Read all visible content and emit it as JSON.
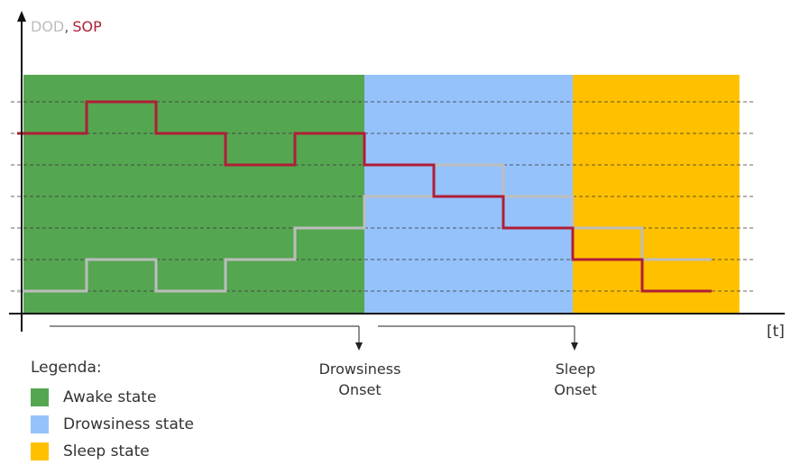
{
  "chart_data": {
    "type": "line",
    "axis_title": {
      "series_a": "DOD",
      "separator": ",",
      "series_b": "SOP"
    },
    "x_unit_label": "[t]",
    "grid": "dashed-horizontal",
    "levels": 7,
    "regions": [
      {
        "state": "awake",
        "t_start": 0,
        "t_end": 5,
        "color": "#55A651"
      },
      {
        "state": "drowsiness",
        "t_start": 5,
        "t_end": 8,
        "color": "#96C2FB"
      },
      {
        "state": "sleep",
        "t_start": 8,
        "t_end": 10.4,
        "color": "#FFC000"
      }
    ],
    "series": [
      {
        "key": "SOP",
        "color": "#B01E36",
        "x": [
          0,
          1,
          2,
          3,
          4,
          5,
          6,
          7,
          8,
          9
        ],
        "values": [
          6,
          7,
          6,
          5,
          6,
          5,
          4,
          3,
          2,
          1
        ]
      },
      {
        "key": "DOD",
        "color": "#BDBDBD",
        "x": [
          0,
          1,
          2,
          3,
          4,
          5,
          6,
          7,
          8,
          9
        ],
        "values": [
          1,
          2,
          1,
          2,
          3,
          4,
          5,
          4,
          3,
          2
        ]
      }
    ],
    "x_end": 10,
    "onsets": [
      {
        "t": 5,
        "line1": "Drowsiness",
        "line2": "Onset"
      },
      {
        "t": 8,
        "line1": "Sleep",
        "line2": "Onset"
      }
    ]
  },
  "legend": {
    "title": "Legenda:",
    "items": [
      {
        "label": "Awake state",
        "color": "#55A651"
      },
      {
        "label": "Drowsiness state",
        "color": "#96C2FB"
      },
      {
        "label": "Sleep state",
        "color": "#FFC000"
      }
    ]
  }
}
